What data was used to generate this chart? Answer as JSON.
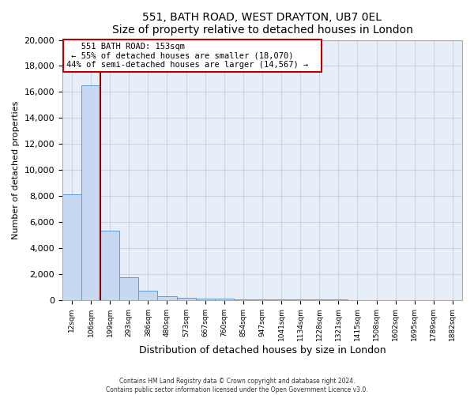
{
  "title": "551, BATH ROAD, WEST DRAYTON, UB7 0EL",
  "subtitle": "Size of property relative to detached houses in London",
  "xlabel": "Distribution of detached houses by size in London",
  "ylabel": "Number of detached properties",
  "bar_labels": [
    "12sqm",
    "106sqm",
    "199sqm",
    "293sqm",
    "386sqm",
    "480sqm",
    "573sqm",
    "667sqm",
    "760sqm",
    "854sqm",
    "947sqm",
    "1041sqm",
    "1134sqm",
    "1228sqm",
    "1321sqm",
    "1415sqm",
    "1508sqm",
    "1602sqm",
    "1695sqm",
    "1789sqm",
    "1882sqm"
  ],
  "bar_heights": [
    8100,
    16500,
    5300,
    1750,
    700,
    300,
    150,
    100,
    75,
    50,
    30,
    20,
    15,
    10,
    8,
    5,
    5,
    4,
    3,
    3,
    2
  ],
  "bar_color": "#c6d9f0",
  "bar_edge_color": "#5b9bd5",
  "vline_color": "#8b0000",
  "annotation_title": "551 BATH ROAD: 153sqm",
  "annotation_line1": "← 55% of detached houses are smaller (18,070)",
  "annotation_line2": "44% of semi-detached houses are larger (14,567) →",
  "annotation_box_color": "#ffffff",
  "annotation_border_color": "#c00000",
  "ylim": [
    0,
    20000
  ],
  "yticks": [
    0,
    2000,
    4000,
    6000,
    8000,
    10000,
    12000,
    14000,
    16000,
    18000,
    20000
  ],
  "grid_color": "#c8d4e8",
  "bg_color": "#e8eef8",
  "fig_color": "#ffffff",
  "footer1": "Contains HM Land Registry data © Crown copyright and database right 2024.",
  "footer2": "Contains public sector information licensed under the Open Government Licence v3.0."
}
